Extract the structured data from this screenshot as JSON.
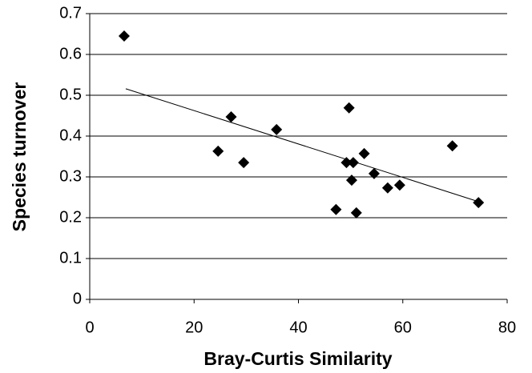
{
  "chart_data": {
    "type": "scatter",
    "x_label": "Bray-Curtis Similarity",
    "y_label": "Species turnover",
    "x": [
      6.6,
      24.6,
      27.1,
      29.5,
      35.8,
      47.2,
      49.2,
      49.7,
      50.2,
      50.5,
      51.1,
      52.6,
      54.5,
      57.1,
      59.4,
      69.5,
      74.5
    ],
    "values": [
      0.645,
      0.363,
      0.447,
      0.335,
      0.416,
      0.22,
      0.335,
      0.469,
      0.292,
      0.335,
      0.212,
      0.357,
      0.308,
      0.273,
      0.28,
      0.376,
      0.237
    ],
    "color": "#000000",
    "trendline": {
      "x": [
        6.9,
        74.6
      ],
      "values": [
        0.516,
        0.239
      ]
    },
    "xlim": [
      0,
      80
    ],
    "xticks": [
      0,
      20,
      40,
      60,
      80
    ],
    "ylim": [
      0,
      0.7
    ],
    "yticks": [
      0,
      0.1,
      0.2,
      0.3,
      0.4,
      0.5,
      0.6,
      0.7
    ],
    "grid": true
  }
}
